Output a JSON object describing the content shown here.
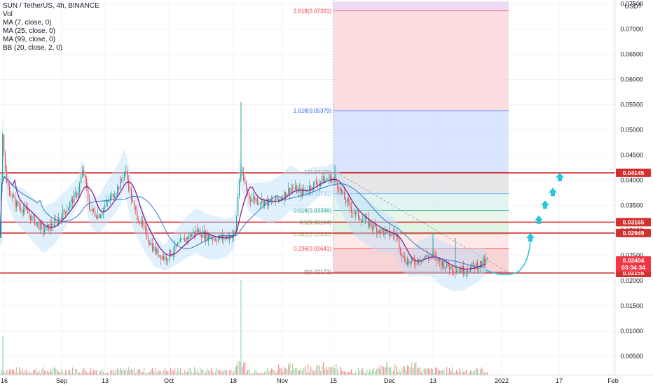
{
  "legend": {
    "title": "SUN / TetherUS, 4h, BINANCE",
    "lines": [
      "Vol",
      "MA (7, close, 0)",
      "MA (25, close, 0)",
      "MA (99, close, 0)",
      "BB (20, close, 2, 0)"
    ]
  },
  "currency": "USDT",
  "chart_data": {
    "type": "candlestick",
    "symbol": "SUN / TetherUS",
    "interval": "4h",
    "exchange": "BINANCE",
    "ylim": [
      0.0,
      0.0755
    ],
    "y_ticks": [
      "0.00500",
      "0.01000",
      "0.01500",
      "0.02000",
      "0.02500",
      "0.03000",
      "0.03500",
      "0.04000",
      "0.04500",
      "0.05000",
      "0.05500",
      "0.06000",
      "0.06500",
      "0.07000",
      "0.07500"
    ],
    "x_ticks": [
      "16",
      "Sep",
      "13",
      "Oct",
      "18",
      "Nov",
      "15",
      "Dec",
      "13",
      "2022",
      "17",
      "Feb"
    ],
    "price_path": [
      [
        0,
        0.0285
      ],
      [
        2,
        0.052
      ],
      [
        8,
        0.0395
      ],
      [
        20,
        0.0355
      ],
      [
        35,
        0.034
      ],
      [
        48,
        0.032
      ],
      [
        62,
        0.03
      ],
      [
        78,
        0.0315
      ],
      [
        95,
        0.0345
      ],
      [
        110,
        0.0375
      ],
      [
        118,
        0.042
      ],
      [
        128,
        0.034
      ],
      [
        140,
        0.033
      ],
      [
        155,
        0.036
      ],
      [
        170,
        0.039
      ],
      [
        178,
        0.042
      ],
      [
        190,
        0.0345
      ],
      [
        205,
        0.03
      ],
      [
        220,
        0.026
      ],
      [
        235,
        0.0245
      ],
      [
        250,
        0.0265
      ],
      [
        265,
        0.0285
      ],
      [
        280,
        0.03
      ],
      [
        292,
        0.029
      ],
      [
        305,
        0.0285
      ],
      [
        320,
        0.0285
      ],
      [
        335,
        0.0295
      ],
      [
        342,
        0.042
      ],
      [
        355,
        0.0365
      ],
      [
        370,
        0.036
      ],
      [
        385,
        0.0355
      ],
      [
        400,
        0.0365
      ],
      [
        415,
        0.0385
      ],
      [
        430,
        0.0375
      ],
      [
        445,
        0.039
      ],
      [
        460,
        0.04
      ],
      [
        472,
        0.0405
      ],
      [
        480,
        0.0395
      ],
      [
        490,
        0.0365
      ],
      [
        505,
        0.0335
      ],
      [
        520,
        0.032
      ],
      [
        535,
        0.0305
      ],
      [
        550,
        0.0295
      ],
      [
        565,
        0.029
      ],
      [
        575,
        0.0245
      ],
      [
        585,
        0.0235
      ],
      [
        600,
        0.0245
      ],
      [
        615,
        0.025
      ],
      [
        630,
        0.0235
      ],
      [
        645,
        0.0225
      ],
      [
        660,
        0.0222
      ],
      [
        675,
        0.0228
      ],
      [
        690,
        0.0236
      ],
      [
        695,
        0.024
      ]
    ],
    "spikes": [
      [
        344,
        0.0555
      ],
      [
        478,
        0.043
      ],
      [
        618,
        0.0295
      ],
      [
        650,
        0.0285
      ]
    ],
    "moving_averages": [
      {
        "name": "MA (7, close, 0)",
        "color": "#8a1f8a"
      },
      {
        "name": "MA (25, close, 0)",
        "color": "#2f78c9"
      },
      {
        "name": "MA (99, close, 0)",
        "color": "#6aa84f"
      }
    ],
    "fibonacci": [
      {
        "label": "0(0.02173)",
        "ratio": "0",
        "value": 0.02173,
        "color": "#787b86"
      },
      {
        "label": "0.236(0.02641)",
        "ratio": "0.236",
        "value": 0.02641,
        "color": "#f23645"
      },
      {
        "label": "0.382(0.02930)",
        "ratio": "0.382",
        "value": 0.0293,
        "color": "#81c784"
      },
      {
        "label": "0.5(0.03164)",
        "ratio": "0.5",
        "value": 0.03164,
        "color": "#4caf50"
      },
      {
        "label": "0.618(0.03398)",
        "ratio": "0.618",
        "value": 0.03398,
        "color": "#089981"
      },
      {
        "label": "0.786(0.03731)",
        "ratio": "0.786",
        "value": 0.03731,
        "color": "#64b5f6"
      },
      {
        "label": "1(0.04155)",
        "ratio": "1",
        "value": 0.04155,
        "color": "#787b86"
      },
      {
        "label": "1.618(0.05379)",
        "ratio": "1.618",
        "value": 0.05379,
        "color": "#2962ff"
      },
      {
        "label": "2.618(0.07361)",
        "ratio": "2.618",
        "value": 0.07361,
        "color": "#f23645"
      }
    ],
    "fib_zones": [
      {
        "from": 0.02173,
        "to": 0.02641,
        "color": "#f7c5c8"
      },
      {
        "from": 0.02641,
        "to": 0.0293,
        "color": "#fde2e2"
      },
      {
        "from": 0.0293,
        "to": 0.03164,
        "color": "#d7efd9"
      },
      {
        "from": 0.03164,
        "to": 0.03398,
        "color": "#e1f3e2"
      },
      {
        "from": 0.03398,
        "to": 0.03731,
        "color": "#d8f0ec"
      },
      {
        "from": 0.03731,
        "to": 0.04155,
        "color": "#dcdde0"
      },
      {
        "from": 0.04155,
        "to": 0.05379,
        "color": "#cfdcff"
      },
      {
        "from": 0.05379,
        "to": 0.07361,
        "color": "#fbd3d6"
      },
      {
        "from": 0.07361,
        "to": 0.0755,
        "color": "#e8cdef"
      }
    ],
    "horizontal_lines": [
      {
        "value": 0.04145,
        "label": "0.04145"
      },
      {
        "value": 0.03165,
        "label": "0.03165"
      },
      {
        "value": 0.02949,
        "label": "0.02949"
      },
      {
        "value": 0.02155,
        "label": "0.02155"
      }
    ],
    "current_price": {
      "value": 0.02404,
      "label": "0.02404",
      "countdown": "03:34:34",
      "color": "#f23645"
    },
    "projection_arrows": [
      {
        "value": 0.0285,
        "color": "#26c6da"
      },
      {
        "value": 0.032,
        "color": "#26c6da"
      },
      {
        "value": 0.035,
        "color": "#26c6da"
      },
      {
        "value": 0.0375,
        "color": "#26c6da"
      },
      {
        "value": 0.0405,
        "color": "#26c6da"
      }
    ]
  }
}
